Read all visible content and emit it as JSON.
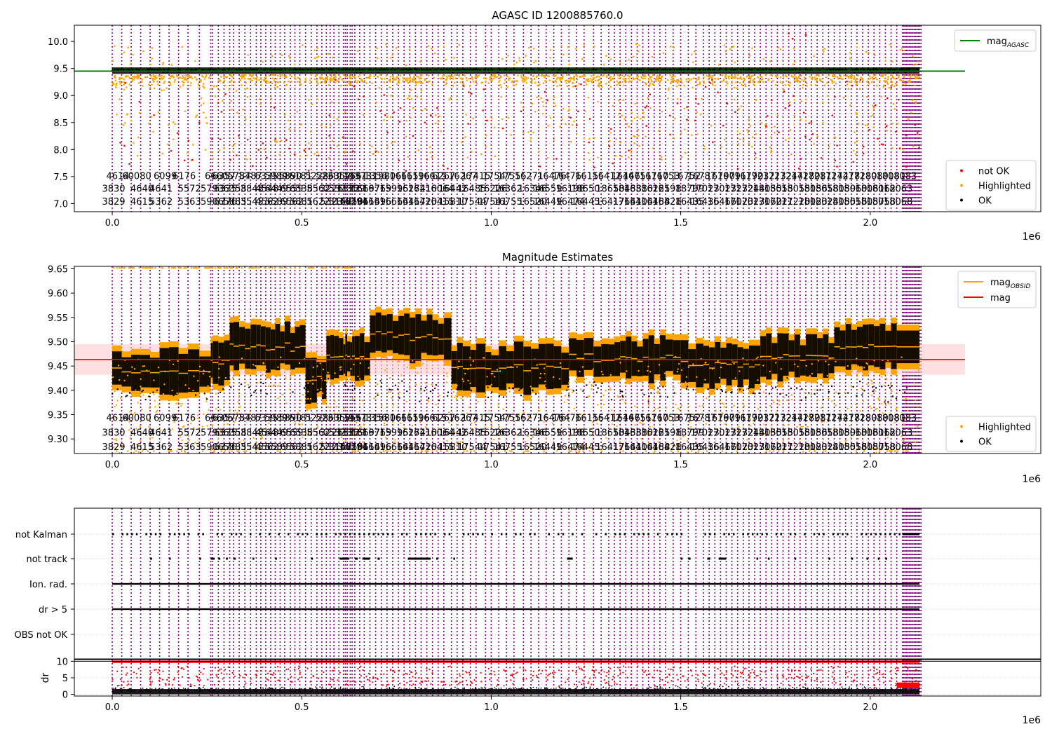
{
  "figure": {
    "exponent_label": "1e6"
  },
  "colors": {
    "obsid_line": "#800080",
    "ok": "#000000",
    "highlighted": "#FFA500",
    "not_ok": "#FF0000",
    "mag_agasc": "#008000",
    "mag_obsid": "#FFA500",
    "mag": "#FF0000",
    "mag_band": "#FFCCCC",
    "grid": "#B0B0B0"
  },
  "chart_data": [
    {
      "type": "scatter",
      "title": "AGASC ID 1200885760.0",
      "xlim": [
        -100000,
        2450000
      ],
      "ylim": [
        6.85,
        10.3
      ],
      "x_ticks": [
        0,
        500000,
        1000000,
        1500000,
        2000000
      ],
      "x_tick_labels": [
        "0.0",
        "0.5",
        "1.0",
        "1.5",
        "2.0"
      ],
      "y_ticks": [
        7.0,
        7.5,
        8.0,
        8.5,
        9.0,
        9.5,
        10.0
      ],
      "y_tick_labels": [
        "7.0",
        "7.5",
        "8.0",
        "8.5",
        "9.0",
        "9.5",
        "10.0"
      ],
      "mag_agasc": 9.45,
      "mag_agasc_xrange": [
        -100000,
        2250000
      ],
      "ok_band": [
        9.4,
        9.52
      ],
      "highlighted_range": [
        8.9,
        9.6
      ],
      "not_ok_range": [
        7.6,
        10.2
      ],
      "legend_upper": {
        "position": "top-right",
        "entries": [
          {
            "label": "mag",
            "sub": "AGASC",
            "kind": "line",
            "color_key": "mag_agasc"
          }
        ]
      },
      "legend_lower": {
        "position": "bottom-right",
        "entries": [
          {
            "label": "not OK",
            "kind": "dot",
            "color_key": "not_ok"
          },
          {
            "label": "Highlighted",
            "kind": "dot",
            "color_key": "highlighted"
          },
          {
            "label": "OK",
            "kind": "dot",
            "color_key": "ok"
          }
        ]
      },
      "obsid_label_rows_y": [
        7.45,
        7.22,
        6.98
      ]
    },
    {
      "type": "scatter",
      "title": "Magnitude Estimates",
      "xlim": [
        -100000,
        2450000
      ],
      "ylim": [
        9.27,
        9.655
      ],
      "x_ticks": [
        0,
        500000,
        1000000,
        1500000,
        2000000
      ],
      "x_tick_labels": [
        "0.0",
        "0.5",
        "1.0",
        "1.5",
        "2.0"
      ],
      "y_ticks": [
        9.3,
        9.35,
        9.4,
        9.45,
        9.5,
        9.55,
        9.6,
        9.65
      ],
      "y_tick_labels": [
        "9.30",
        "9.35",
        "9.40",
        "9.45",
        "9.50",
        "9.55",
        "9.60",
        "9.65"
      ],
      "mag": 9.463,
      "mag_band": [
        9.432,
        9.495
      ],
      "mag_xrange": [
        -100000,
        2250000
      ],
      "legend_upper": {
        "position": "top-right",
        "entries": [
          {
            "label": "mag",
            "sub": "OBSID",
            "kind": "line",
            "color_key": "mag_obsid"
          },
          {
            "label": "mag",
            "sub": "",
            "kind": "line",
            "color_key": "mag"
          }
        ]
      },
      "legend_lower": {
        "position": "bottom-right",
        "entries": [
          {
            "label": "Highlighted",
            "kind": "dot",
            "color_key": "highlighted"
          },
          {
            "label": "OK",
            "kind": "dot",
            "color_key": "ok"
          }
        ]
      },
      "obsid_label_rows_y": [
        9.337,
        9.307,
        9.277
      ]
    },
    {
      "type": "scatter",
      "title": "",
      "xlim": [
        -100000,
        2450000
      ],
      "flag_rows": [
        "not Kalman",
        "not track",
        "Ion. rad.",
        "dr > 5",
        "OBS not OK"
      ],
      "x_ticks": [
        0,
        500000,
        1000000,
        1500000,
        2000000
      ],
      "x_tick_labels": [
        "0.0",
        "0.5",
        "1.0",
        "1.5",
        "2.0"
      ]
    },
    {
      "type": "scatter",
      "title": "",
      "ylabel": "dr",
      "xlim": [
        -100000,
        2450000
      ],
      "ylim": [
        -0.5,
        10.5
      ],
      "y_ticks": [
        0,
        5,
        10
      ],
      "y_tick_labels": [
        "0",
        "5",
        "10"
      ],
      "x_ticks": [
        0,
        500000,
        1000000,
        1500000,
        2000000
      ],
      "x_tick_labels": [
        "0.0",
        "0.5",
        "1.0",
        "1.5",
        "2.0"
      ],
      "threshold": 10
    }
  ],
  "obsid_lines_x": [
    0,
    25000,
    50000,
    75000,
    100000,
    125000,
    150000,
    175000,
    200000,
    230000,
    260000,
    265000,
    280000,
    295000,
    310000,
    320000,
    335000,
    350000,
    365000,
    380000,
    392000,
    405000,
    418000,
    430000,
    443000,
    455000,
    470000,
    482000,
    495000,
    510000,
    525000,
    540000,
    553000,
    565000,
    575000,
    585000,
    598000,
    610000,
    615000,
    620000,
    628000,
    633000,
    640000,
    653000,
    665000,
    680000,
    695000,
    710000,
    725000,
    740000,
    755000,
    770000,
    785000,
    800000,
    815000,
    830000,
    845000,
    860000,
    875000,
    895000,
    910000,
    925000,
    945000,
    960000,
    985000,
    1000000,
    1020000,
    1040000,
    1060000,
    1085000,
    1105000,
    1125000,
    1145000,
    1165000,
    1185000,
    1205000,
    1225000,
    1245000,
    1270000,
    1290000,
    1310000,
    1325000,
    1340000,
    1355000,
    1370000,
    1385000,
    1400000,
    1415000,
    1430000,
    1445000,
    1460000,
    1480000,
    1500000,
    1520000,
    1540000,
    1560000,
    1575000,
    1590000,
    1605000,
    1620000,
    1635000,
    1650000,
    1665000,
    1680000,
    1695000,
    1710000,
    1725000,
    1740000,
    1755000,
    1770000,
    1785000,
    1800000,
    1815000,
    1830000,
    1845000,
    1860000,
    1875000,
    1890000,
    1905000,
    1920000,
    1935000,
    1950000,
    1965000,
    1980000,
    1995000,
    2010000,
    2025000,
    2040000,
    2055000,
    2070000
  ],
  "obsid_labels": {
    "row1": [
      "4614",
      "60080",
      "6099",
      "6176",
      "6660",
      "6357",
      "5784",
      "5787",
      "6335",
      "5989",
      "5890",
      "6181",
      "5228",
      "5230",
      "6352",
      "1145",
      "5561",
      "1373",
      "1356",
      "15806",
      "16615",
      "16196",
      "16615",
      "6267",
      "16267",
      "17415",
      "17547",
      "17555",
      "16271",
      "16476",
      "16476",
      "16155",
      "16412",
      "16446",
      "16751",
      "16710",
      "16753",
      "16752",
      "16787",
      "16790",
      "16791",
      "16790",
      "17232",
      "17232",
      "17244",
      "17280",
      "17281",
      "17244",
      "17278",
      "17280",
      "18080",
      "18081",
      "18083"
    ],
    "row2": [
      "3830",
      "4640",
      "4641",
      "5572",
      "5793",
      "6335",
      "6358",
      "3848",
      "4548",
      "6449",
      "6559",
      "6538",
      "5562",
      "3226",
      "5323",
      "1322",
      "1339",
      "16697",
      "16769",
      "15995",
      "16274",
      "16210",
      "16064",
      "16442",
      "16485",
      "16226",
      "16362",
      "16346",
      "16559",
      "16198",
      "18650",
      "18650",
      "18438",
      "16380",
      "16225",
      "16198",
      "18799",
      "17023",
      "17023",
      "17232",
      "17244",
      "18055",
      "18055",
      "18055",
      "18056",
      "18058",
      "18059",
      "18060",
      "18061",
      "18062",
      "18063"
    ],
    "row3": [
      "3829",
      "4615",
      "5362",
      "5363",
      "5906",
      "6376",
      "5885",
      "3545",
      "4562",
      "5589",
      "6562",
      "5881",
      "5622",
      "5323",
      "3148",
      "16750",
      "16294",
      "16614",
      "16696",
      "16664",
      "16417",
      "16420",
      "16415",
      "15810",
      "17544",
      "17541",
      "16755",
      "16520",
      "16449",
      "16474",
      "16445",
      "16417",
      "17641",
      "16404",
      "16488",
      "16428",
      "16435",
      "16436",
      "16466",
      "17023",
      "17023",
      "17060",
      "17221",
      "17220",
      "18023",
      "18024",
      "18055",
      "18056",
      "18057",
      "18058",
      "18068"
    ]
  }
}
